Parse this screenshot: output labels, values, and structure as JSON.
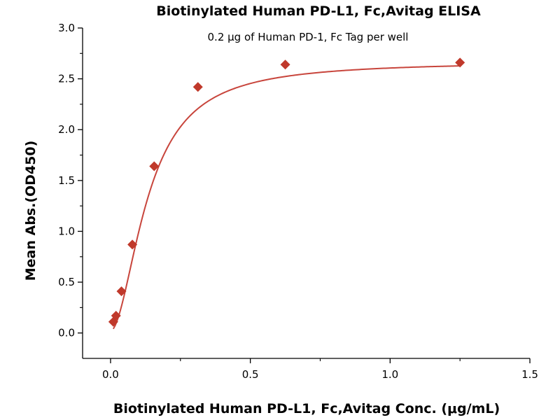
{
  "chart_data": {
    "type": "scatter",
    "title": "Biotinylated Human PD-L1, Fc,Avitag ELISA",
    "subtitle": "0.2 μg of Human PD-1, Fc Tag per well",
    "xlabel": "Biotinylated Human PD-L1, Fc,Avitag Conc. (μg/mL)",
    "ylabel": "Mean Abs.(OD450)",
    "xlim": [
      -0.1,
      1.5
    ],
    "ylim": [
      -0.25,
      3.0
    ],
    "x_ticks": [
      0.0,
      0.5,
      1.0,
      1.5
    ],
    "x_tick_labels": [
      "0.0",
      "0.5",
      "1.0",
      "1.5"
    ],
    "y_ticks": [
      0.0,
      0.5,
      1.0,
      1.5,
      2.0,
      2.5,
      3.0
    ],
    "y_tick_labels": [
      "0.0",
      "0.5",
      "1.0",
      "1.5",
      "2.0",
      "2.5",
      "3.0"
    ],
    "grid": false,
    "legend": "none",
    "marker_color": "#c0392b",
    "curve_color": "#c8453c",
    "series": [
      {
        "marker": "diamond",
        "points": [
          {
            "x": 0.0098,
            "y": 0.11
          },
          {
            "x": 0.0195,
            "y": 0.17
          },
          {
            "x": 0.039,
            "y": 0.41
          },
          {
            "x": 0.078,
            "y": 0.87
          },
          {
            "x": 0.156,
            "y": 1.64
          },
          {
            "x": 0.3125,
            "y": 2.42
          },
          {
            "x": 0.625,
            "y": 2.64
          },
          {
            "x": 1.25,
            "y": 2.66
          }
        ],
        "fit": "four-parameter logistic"
      }
    ]
  }
}
